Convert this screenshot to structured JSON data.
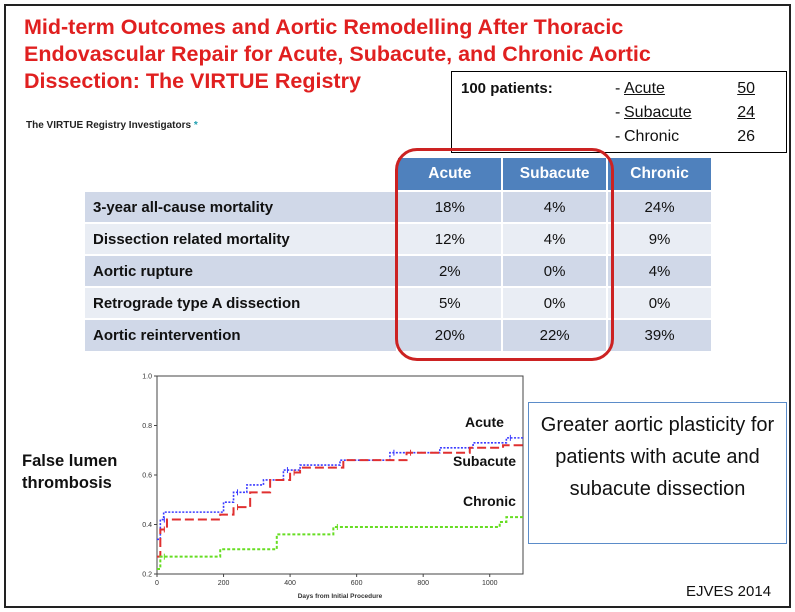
{
  "title": "Mid-term Outcomes and Aortic Remodelling After Thoracic Endovascular Repair for Acute, Subacute, and Chronic Aortic Dissection: The VIRTUE Registry",
  "investigators": "The VIRTUE Registry Investigators",
  "investigators_mark": "*",
  "patients_box": {
    "label": "100 patients:",
    "rows": [
      {
        "name": "Acute",
        "value": "50"
      },
      {
        "name": "Subacute",
        "value": "24"
      },
      {
        "name": "Chronic",
        "value": "26"
      }
    ]
  },
  "table": {
    "headers": [
      "Acute",
      "Subacute",
      "Chronic"
    ],
    "rows": [
      {
        "label": "3-year all-cause mortality",
        "values": [
          "18%",
          "4%",
          "24%"
        ]
      },
      {
        "label": "Dissection related mortality",
        "values": [
          "12%",
          "4%",
          "9%"
        ]
      },
      {
        "label": "Aortic rupture",
        "values": [
          "2%",
          "0%",
          "4%"
        ]
      },
      {
        "label": "Retrograde type A dissection",
        "values": [
          "5%",
          "0%",
          "0%"
        ]
      },
      {
        "label": "Aortic reintervention",
        "values": [
          "20%",
          "22%",
          "39%"
        ]
      }
    ]
  },
  "chart_ylabel": "False lumen thrombosis",
  "callout": "Greater aortic plasticity for patients with acute and subacute dissection",
  "source": "EJVES 2014",
  "colors": {
    "title": "#e02020",
    "table_header": "#4f81bd",
    "highlight": "#cc2222",
    "acute": "#3b3bff",
    "subacute": "#e03030",
    "chronic": "#66dd22"
  },
  "chart_data": {
    "type": "line",
    "xlabel": "Days from Initial Procedure",
    "ylabel": "False lumen thrombosis",
    "xlim": [
      0,
      1100
    ],
    "ylim": [
      0.2,
      1.0
    ],
    "y_ticks": [
      "0.2",
      "0.4",
      "0.6",
      "0.8",
      "1.0"
    ],
    "x_ticks": [
      "0",
      "200",
      "400",
      "600",
      "800",
      "1000"
    ],
    "series": [
      {
        "name": "Acute",
        "color": "#3b3bff",
        "steps": [
          [
            0,
            0.34
          ],
          [
            10,
            0.42
          ],
          [
            20,
            0.45
          ],
          [
            200,
            0.49
          ],
          [
            230,
            0.53
          ],
          [
            270,
            0.56
          ],
          [
            320,
            0.58
          ],
          [
            380,
            0.62
          ],
          [
            430,
            0.64
          ],
          [
            550,
            0.66
          ],
          [
            700,
            0.69
          ],
          [
            850,
            0.71
          ],
          [
            950,
            0.73
          ],
          [
            1050,
            0.75
          ],
          [
            1100,
            0.75
          ]
        ]
      },
      {
        "name": "Subacute",
        "color": "#e03030",
        "steps": [
          [
            0,
            0.27
          ],
          [
            10,
            0.38
          ],
          [
            30,
            0.42
          ],
          [
            190,
            0.44
          ],
          [
            230,
            0.47
          ],
          [
            280,
            0.53
          ],
          [
            340,
            0.58
          ],
          [
            400,
            0.61
          ],
          [
            430,
            0.63
          ],
          [
            560,
            0.66
          ],
          [
            750,
            0.69
          ],
          [
            940,
            0.71
          ],
          [
            1040,
            0.72
          ],
          [
            1100,
            0.72
          ]
        ]
      },
      {
        "name": "Chronic",
        "color": "#66dd22",
        "steps": [
          [
            0,
            0.22
          ],
          [
            10,
            0.27
          ],
          [
            190,
            0.3
          ],
          [
            360,
            0.36
          ],
          [
            530,
            0.39
          ],
          [
            1030,
            0.41
          ],
          [
            1050,
            0.43
          ],
          [
            1100,
            0.43
          ]
        ]
      }
    ]
  }
}
